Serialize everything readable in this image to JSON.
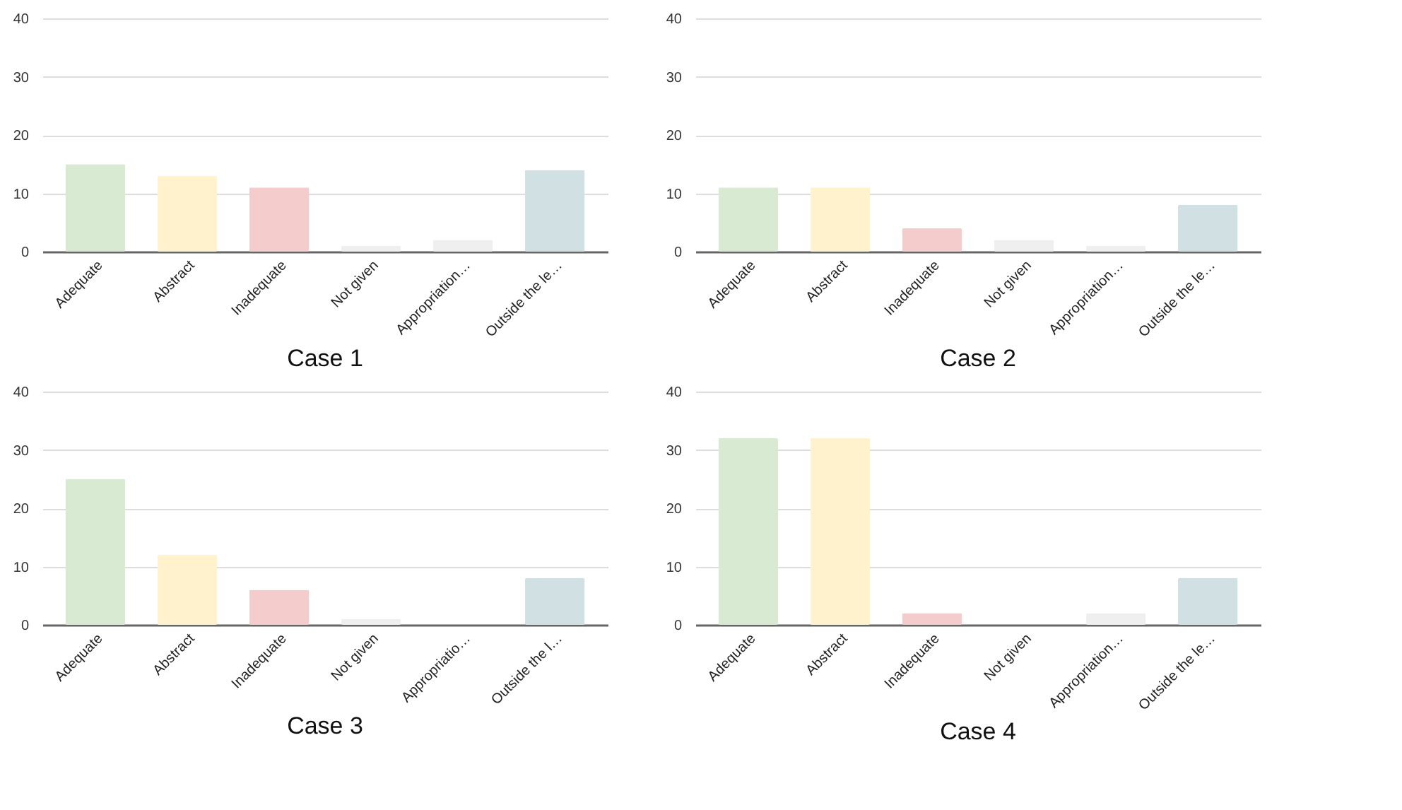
{
  "chart_data": [
    {
      "type": "bar",
      "title": "Case 1",
      "categories": [
        "Adequate",
        "Abstract",
        "Inadequate",
        "Not given",
        "Appropriation…",
        "Outside the le…"
      ],
      "values": [
        15,
        13,
        11,
        1,
        2,
        14
      ],
      "colors": [
        "#d9ead3",
        "#fff2cc",
        "#f4cccc",
        "#efefef",
        "#efefef",
        "#d0e0e3"
      ],
      "ylim": [
        0,
        40
      ],
      "yticks": [
        0,
        10,
        20,
        30,
        40
      ],
      "grid": "y",
      "legend": false
    },
    {
      "type": "bar",
      "title": "Case 2",
      "categories": [
        "Adequate",
        "Abstract",
        "Inadequate",
        "Not given",
        "Appropriation…",
        "Outside the le…"
      ],
      "values": [
        11,
        11,
        4,
        2,
        1,
        8
      ],
      "colors": [
        "#d9ead3",
        "#fff2cc",
        "#f4cccc",
        "#efefef",
        "#efefef",
        "#d0e0e3"
      ],
      "ylim": [
        0,
        40
      ],
      "yticks": [
        0,
        10,
        20,
        30,
        40
      ],
      "grid": "y",
      "legend": false
    },
    {
      "type": "bar",
      "title": "Case 3",
      "categories": [
        "Adequate",
        "Abstract",
        "Inadequate",
        "Not given",
        "Appropriatio…",
        "Outside the l…"
      ],
      "values": [
        25,
        12,
        6,
        1,
        0,
        8
      ],
      "colors": [
        "#d9ead3",
        "#fff2cc",
        "#f4cccc",
        "#efefef",
        "#efefef",
        "#d0e0e3"
      ],
      "ylim": [
        0,
        40
      ],
      "yticks": [
        0,
        10,
        20,
        30,
        40
      ],
      "grid": "y",
      "legend": false
    },
    {
      "type": "bar",
      "title": "Case 4",
      "categories": [
        "Adequate",
        "Abstract",
        "Inadequate",
        "Not given",
        "Appropriation…",
        "Outside the le…"
      ],
      "values": [
        32,
        32,
        2,
        0,
        2,
        8
      ],
      "colors": [
        "#d9ead3",
        "#fff2cc",
        "#f4cccc",
        "#efefef",
        "#efefef",
        "#d0e0e3"
      ],
      "ylim": [
        0,
        40
      ],
      "yticks": [
        0,
        10,
        20,
        30,
        40
      ],
      "grid": "y",
      "legend": false
    }
  ]
}
